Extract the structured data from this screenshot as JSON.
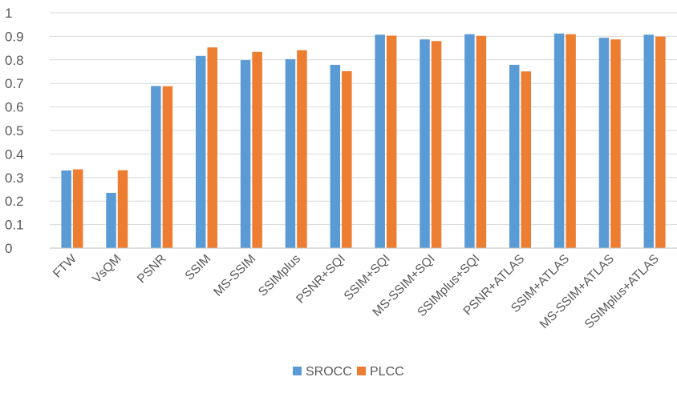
{
  "chart_data": {
    "type": "bar",
    "categories": [
      "FTW",
      "VsQM",
      "PSNR",
      "SSIM",
      "MS-SSIM",
      "SSIMplus",
      "PSNR+SQI",
      "SSIM+SQI",
      "MS-SSIM+SQI",
      "SSIMplus+SQI",
      "PSNR+ATLAS",
      "SSIM+ATLAS",
      "MS-SSIM+ATLAS",
      "SSIMplus+ATLAS"
    ],
    "series": [
      {
        "name": "SROCC",
        "color": "#5b9bd5",
        "values": [
          0.33,
          0.235,
          0.689,
          0.817,
          0.799,
          0.803,
          0.779,
          0.907,
          0.887,
          0.909,
          0.779,
          0.912,
          0.894,
          0.907
        ]
      },
      {
        "name": "PLCC",
        "color": "#ed7d31",
        "values": [
          0.335,
          0.331,
          0.688,
          0.853,
          0.834,
          0.841,
          0.752,
          0.903,
          0.88,
          0.902,
          0.751,
          0.909,
          0.887,
          0.899
        ]
      }
    ],
    "ylim": [
      0,
      1
    ],
    "yticks": [
      "0",
      "0.1",
      "0.2",
      "0.3",
      "0.4",
      "0.5",
      "0.6",
      "0.7",
      "0.8",
      "0.9",
      "1"
    ],
    "title": "",
    "xlabel": "",
    "ylabel": "",
    "grid": "horizontal",
    "legend": "bottom-center"
  }
}
